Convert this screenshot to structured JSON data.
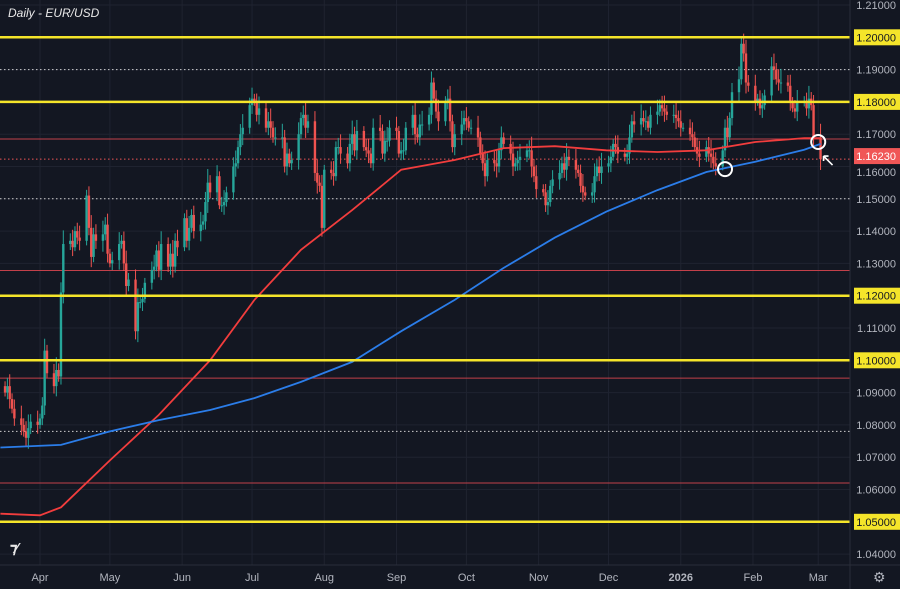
{
  "header": {
    "title": "Daily - EUR/USD"
  },
  "logo_text": "TV",
  "icons": {
    "settings": "gear-icon",
    "cursor": "arrow-cursor-icon"
  },
  "colors": {
    "background": "#131722",
    "up": "#26a69a",
    "down": "#ef5350",
    "level": "#f5e52a",
    "ma_red": "#f23d3d",
    "ma_blue": "#2b7de9",
    "minor_level": "#c2404a",
    "price_tag": "#f05656"
  },
  "chart_data": {
    "type": "candlestick",
    "title": "Daily - EUR/USD",
    "ylim": [
      1.035,
      1.213
    ],
    "y_ticks": [
      "1.21000",
      "1.20000",
      "1.19000",
      "1.18000",
      "1.17000",
      "1.16000",
      "1.15000",
      "1.14000",
      "1.13000",
      "1.12000",
      "1.11000",
      "1.10000",
      "1.09000",
      "1.08000",
      "1.07000",
      "1.06000",
      "1.05000",
      "1.04000"
    ],
    "x_ticks": [
      {
        "label": "Apr",
        "date": "2025-04-01"
      },
      {
        "label": "May",
        "date": "2025-05-01"
      },
      {
        "label": "Jun",
        "date": "2025-06-01"
      },
      {
        "label": "Jul",
        "date": "2025-07-01"
      },
      {
        "label": "Aug",
        "date": "2025-08-01"
      },
      {
        "label": "Sep",
        "date": "2025-09-01"
      },
      {
        "label": "Oct",
        "date": "2025-10-01"
      },
      {
        "label": "Nov",
        "date": "2025-11-01"
      },
      {
        "label": "Dec",
        "date": "2025-12-01"
      },
      {
        "label": "2026",
        "date": "2026-01-01"
      },
      {
        "label": "Feb",
        "date": "2026-02-01"
      },
      {
        "label": "Mar",
        "date": "2026-03-01"
      }
    ],
    "first_candle_date": "2025-03-17",
    "closes": [
      1.09,
      1.092,
      1.088,
      1.085,
      1.082,
      1.08,
      1.078,
      1.076,
      1.079,
      1.081,
      1.08,
      1.082,
      1.086,
      1.103,
      1.096,
      1.092,
      1.097,
      1.095,
      1.121,
      1.136,
      1.137,
      1.135,
      1.14,
      1.138,
      1.137,
      1.151,
      1.141,
      1.132,
      1.139,
      1.137,
      1.139,
      1.142,
      1.133,
      1.13,
      1.131,
      1.136,
      1.137,
      1.13,
      1.123,
      1.125,
      1.109,
      1.118,
      1.118,
      1.119,
      1.124,
      1.128,
      1.129,
      1.134,
      1.128,
      1.136,
      1.129,
      1.133,
      1.129,
      1.137,
      1.135,
      1.144,
      1.137,
      1.141,
      1.145,
      1.14,
      1.142,
      1.143,
      1.149,
      1.155,
      1.152,
      1.157,
      1.148,
      1.148,
      1.149,
      1.152,
      1.16,
      1.161,
      1.166,
      1.17,
      1.172,
      1.179,
      1.181,
      1.18,
      1.176,
      1.178,
      1.172,
      1.174,
      1.172,
      1.169,
      1.169,
      1.169,
      1.16,
      1.164,
      1.161,
      1.162,
      1.17,
      1.175,
      1.176,
      1.172,
      1.174,
      1.158,
      1.155,
      1.154,
      1.141,
      1.159,
      1.158,
      1.157,
      1.166,
      1.166,
      1.164,
      1.161,
      1.167,
      1.17,
      1.165,
      1.171,
      1.166,
      1.165,
      1.164,
      1.161,
      1.172,
      1.171,
      1.164,
      1.168,
      1.168,
      1.172,
      1.171,
      1.164,
      1.165,
      1.165,
      1.172,
      1.176,
      1.17,
      1.169,
      1.173,
      1.173,
      1.176,
      1.186,
      1.181,
      1.177,
      1.174,
      1.18,
      1.181,
      1.174,
      1.166,
      1.17,
      1.173,
      1.175,
      1.174,
      1.172,
      1.172,
      1.169,
      1.164,
      1.161,
      1.157,
      1.162,
      1.161,
      1.16,
      1.165,
      1.169,
      1.167,
      1.164,
      1.16,
      1.161,
      1.162,
      1.163,
      1.165,
      1.165,
      1.16,
      1.157,
      1.153,
      1.152,
      1.148,
      1.149,
      1.154,
      1.156,
      1.158,
      1.161,
      1.159,
      1.163,
      1.162,
      1.159,
      1.158,
      1.154,
      1.152,
      1.151,
      1.152,
      1.157,
      1.16,
      1.158,
      1.16,
      1.161,
      1.163,
      1.167,
      1.166,
      1.164,
      1.163,
      1.164,
      1.169,
      1.174,
      1.173,
      1.175,
      1.174,
      1.174,
      1.172,
      1.176,
      1.177,
      1.179,
      1.178,
      1.177,
      1.176,
      1.176,
      1.175,
      1.174,
      1.172,
      1.172,
      1.17,
      1.169,
      1.166,
      1.164,
      1.163,
      1.166,
      1.164,
      1.163,
      1.161,
      1.16,
      1.165,
      1.172,
      1.169,
      1.175,
      1.183,
      1.187,
      1.198,
      1.195,
      1.186,
      1.185,
      1.18,
      1.181,
      1.178,
      1.179,
      1.182,
      1.191,
      1.19,
      1.187,
      1.186,
      1.186,
      1.185,
      1.18,
      1.178,
      1.177,
      1.18,
      1.18,
      1.178,
      1.181,
      1.179,
      1.169,
      1.1623
    ],
    "moving_averages": [
      {
        "color": "#f23d3d",
        "points": [
          [
            "2025-03-15",
            1.0525
          ],
          [
            "2025-04-01",
            1.052
          ],
          [
            "2025-04-10",
            1.0545
          ],
          [
            "2025-05-01",
            1.069
          ],
          [
            "2025-05-22",
            1.0831
          ],
          [
            "2025-06-13",
            1.1
          ],
          [
            "2025-07-02",
            1.1187
          ],
          [
            "2025-07-22",
            1.1342
          ],
          [
            "2025-08-13",
            1.1465
          ],
          [
            "2025-09-03",
            1.159
          ],
          [
            "2025-09-26",
            1.162
          ],
          [
            "2025-10-17",
            1.1657
          ],
          [
            "2025-11-08",
            1.1663
          ],
          [
            "2025-11-30",
            1.165
          ],
          [
            "2025-12-22",
            1.1645
          ],
          [
            "2026-01-12",
            1.165
          ],
          [
            "2026-02-02",
            1.1676
          ],
          [
            "2026-02-23",
            1.1688
          ],
          [
            "2026-03-02",
            1.1688
          ]
        ]
      },
      {
        "color": "#2b7de9",
        "points": [
          [
            "2025-03-15",
            1.073
          ],
          [
            "2025-04-10",
            1.0738
          ],
          [
            "2025-05-01",
            1.078
          ],
          [
            "2025-05-22",
            1.0815
          ],
          [
            "2025-06-13",
            1.0846
          ],
          [
            "2025-07-02",
            1.0883
          ],
          [
            "2025-07-22",
            1.0933
          ],
          [
            "2025-08-13",
            1.0995
          ],
          [
            "2025-09-03",
            1.109
          ],
          [
            "2025-09-26",
            1.1187
          ],
          [
            "2025-10-17",
            1.1286
          ],
          [
            "2025-11-08",
            1.138
          ],
          [
            "2025-11-30",
            1.146
          ],
          [
            "2025-12-22",
            1.1527
          ],
          [
            "2026-01-12",
            1.1583
          ],
          [
            "2026-02-02",
            1.1615
          ],
          [
            "2026-02-23",
            1.1652
          ],
          [
            "2026-03-02",
            1.167
          ]
        ]
      }
    ],
    "key_levels": [
      {
        "price": 1.2,
        "label": "1.20000"
      },
      {
        "price": 1.18,
        "label": "1.18000"
      },
      {
        "price": 1.12,
        "label": "1.12000"
      },
      {
        "price": 1.1,
        "label": "1.10000"
      },
      {
        "price": 1.05,
        "label": "1.05000"
      }
    ],
    "minor_levels": [
      1.1685,
      1.1278,
      1.0945,
      1.062
    ],
    "dotted_levels": [
      1.19,
      1.15,
      1.078
    ],
    "last_price": {
      "price": 1.1623,
      "label": "1.16230"
    },
    "annotations": [
      {
        "type": "circle",
        "date": "2026-01-20",
        "price": 1.1592
      },
      {
        "type": "circle",
        "date": "2026-03-01",
        "price": 1.1676
      },
      {
        "type": "arrow",
        "date": "2026-03-05",
        "price": 1.162
      }
    ]
  }
}
